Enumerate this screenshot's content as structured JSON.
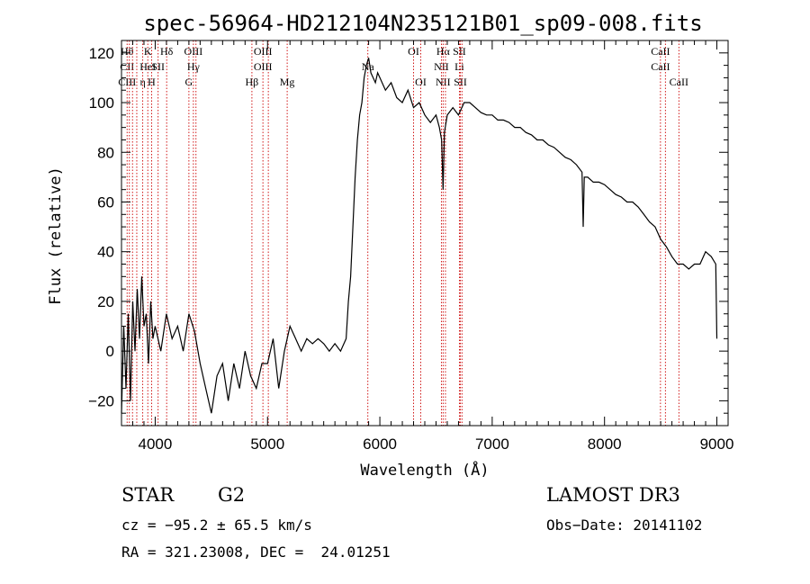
{
  "chart_data": {
    "type": "line",
    "title": "spec-56964-HD212104N235121B01_sp09-008.fits",
    "xlabel": "Wavelength (Å)",
    "ylabel": "Flux (relative)",
    "xlim": [
      3700,
      9100
    ],
    "ylim": [
      -30,
      125
    ],
    "xticks": [
      4000,
      5000,
      6000,
      7000,
      8000,
      9000
    ],
    "yticks": [
      -20,
      0,
      20,
      40,
      60,
      80,
      100,
      120
    ],
    "grid": false,
    "series": [
      {
        "x": [
          3700,
          3720,
          3740,
          3760,
          3780,
          3800,
          3820,
          3840,
          3860,
          3880,
          3900,
          3920,
          3940,
          3960,
          3980,
          4000,
          4050,
          4100,
          4150,
          4200,
          4250,
          4300,
          4350,
          4400,
          4450,
          4500,
          4550,
          4600,
          4650,
          4700,
          4750,
          4800,
          4850,
          4900,
          4950,
          5000,
          5050,
          5100,
          5150,
          5200,
          5250,
          5300,
          5350,
          5400,
          5450,
          5500,
          5550,
          5600,
          5650,
          5700,
          5720,
          5740,
          5760,
          5780,
          5800,
          5820,
          5840,
          5860,
          5880,
          5900,
          5920,
          5940,
          5960,
          5980,
          6000,
          6050,
          6100,
          6150,
          6200,
          6250,
          6300,
          6350,
          6400,
          6450,
          6500,
          6530,
          6550,
          6563,
          6575,
          6600,
          6650,
          6700,
          6750,
          6800,
          6850,
          6900,
          6950,
          7000,
          7050,
          7100,
          7150,
          7200,
          7250,
          7300,
          7350,
          7400,
          7450,
          7500,
          7550,
          7600,
          7650,
          7700,
          7750,
          7800,
          7810,
          7820,
          7850,
          7900,
          7950,
          8000,
          8050,
          8100,
          8150,
          8200,
          8250,
          8300,
          8350,
          8400,
          8450,
          8500,
          8550,
          8600,
          8650,
          8700,
          8750,
          8800,
          8850,
          8900,
          8950,
          8990,
          9000
        ],
        "y": [
          -25,
          10,
          -15,
          15,
          -20,
          20,
          0,
          25,
          5,
          30,
          10,
          15,
          -5,
          20,
          5,
          10,
          0,
          15,
          5,
          10,
          0,
          15,
          8,
          -5,
          -15,
          -25,
          -10,
          -5,
          -20,
          -5,
          -15,
          0,
          -10,
          -15,
          -5,
          -5,
          5,
          -15,
          0,
          10,
          5,
          0,
          5,
          3,
          5,
          3,
          0,
          3,
          0,
          5,
          20,
          30,
          50,
          70,
          85,
          95,
          100,
          110,
          115,
          118,
          112,
          110,
          108,
          112,
          110,
          105,
          108,
          102,
          100,
          105,
          98,
          100,
          95,
          92,
          95,
          90,
          85,
          65,
          88,
          95,
          98,
          95,
          100,
          100,
          98,
          96,
          95,
          95,
          93,
          93,
          92,
          90,
          90,
          88,
          87,
          85,
          85,
          83,
          82,
          80,
          78,
          77,
          75,
          72,
          50,
          70,
          70,
          68,
          68,
          67,
          65,
          63,
          62,
          60,
          60,
          58,
          55,
          52,
          50,
          45,
          42,
          38,
          35,
          35,
          33,
          35,
          35,
          40,
          38,
          35,
          5
        ]
      }
    ],
    "lines": [
      {
        "x": 3750,
        "top": "Hθ",
        "mid": "CII",
        "bot": "CIII"
      },
      {
        "x": 3770,
        "top": "",
        "mid": "",
        "bot": ""
      },
      {
        "x": 3798,
        "top": "",
        "mid": "",
        "bot": ""
      },
      {
        "x": 3836,
        "top": "",
        "mid": "",
        "bot": ""
      },
      {
        "x": 3889,
        "top": "",
        "mid": "",
        "bot": "η"
      },
      {
        "x": 3934,
        "top": "K",
        "mid": "HeI",
        "bot": ""
      },
      {
        "x": 3968,
        "top": "",
        "mid": "",
        "bot": "H"
      },
      {
        "x": 4026,
        "top": "",
        "mid": "SII",
        "bot": ""
      },
      {
        "x": 4102,
        "top": "Hδ",
        "mid": "",
        "bot": ""
      },
      {
        "x": 4300,
        "top": "",
        "mid": "",
        "bot": "G"
      },
      {
        "x": 4340,
        "top": "OIII",
        "mid": "Hγ",
        "bot": ""
      },
      {
        "x": 4363,
        "top": "",
        "mid": "",
        "bot": ""
      },
      {
        "x": 4861,
        "top": "",
        "mid": "",
        "bot": "Hβ"
      },
      {
        "x": 4959,
        "top": "OIII",
        "mid": "OIII",
        "bot": ""
      },
      {
        "x": 5007,
        "top": "",
        "mid": "",
        "bot": ""
      },
      {
        "x": 5175,
        "top": "",
        "mid": "",
        "bot": "Mg"
      },
      {
        "x": 5893,
        "top": "",
        "mid": "Na",
        "bot": ""
      },
      {
        "x": 6300,
        "top": "OI",
        "mid": "",
        "bot": ""
      },
      {
        "x": 6364,
        "top": "",
        "mid": "",
        "bot": "OI"
      },
      {
        "x": 6548,
        "top": "",
        "mid": "NII",
        "bot": ""
      },
      {
        "x": 6563,
        "top": "Hα",
        "mid": "",
        "bot": "NII"
      },
      {
        "x": 6584,
        "top": "",
        "mid": "",
        "bot": ""
      },
      {
        "x": 6708,
        "top": "SII",
        "mid": "Li",
        "bot": ""
      },
      {
        "x": 6717,
        "top": "",
        "mid": "",
        "bot": "SII"
      },
      {
        "x": 6731,
        "top": "",
        "mid": "",
        "bot": ""
      },
      {
        "x": 8498,
        "top": "CaII",
        "mid": "CaII",
        "bot": ""
      },
      {
        "x": 8542,
        "top": "",
        "mid": "",
        "bot": ""
      },
      {
        "x": 8662,
        "top": "",
        "mid": "",
        "bot": "CaII"
      }
    ]
  },
  "info": {
    "class": "STAR",
    "subclass": "G2",
    "survey": "LAMOST DR3",
    "cz": "cz = −95.2 ± 65.5 km/s",
    "obsdate": "Obs−Date: 20141102",
    "radec": "RA = 321.23008, DEC =  24.01251"
  },
  "colors": {
    "spectrum": "#000000",
    "line_markers": "#cc0000"
  }
}
